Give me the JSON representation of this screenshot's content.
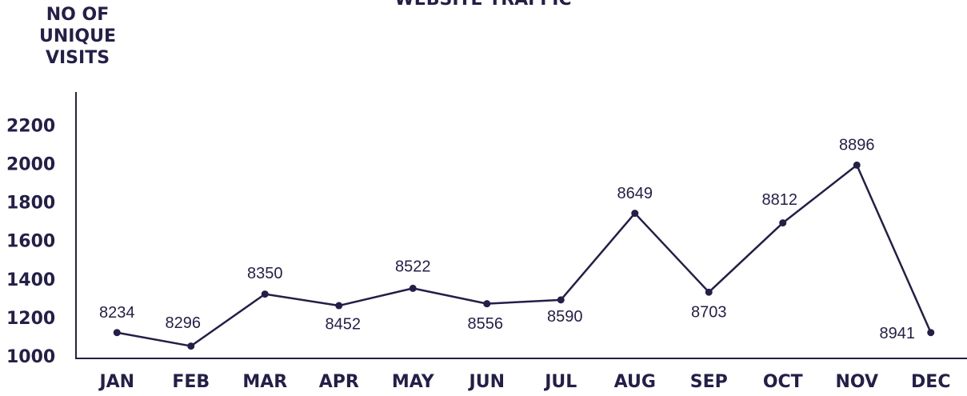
{
  "chart_data": {
    "type": "line",
    "title": "WEBSITE TRAFFIC",
    "ylabel": [
      "NO OF",
      "UNIQUE",
      "VISITS"
    ],
    "categories": [
      "JAN",
      "FEB",
      "MAR",
      "APR",
      "MAY",
      "JUN",
      "JUL",
      "AUG",
      "SEP",
      "OCT",
      "NOV",
      "DEC"
    ],
    "series": [
      {
        "color": "#231f48",
        "values": [
          1130,
          1060,
          1330,
          1270,
          1360,
          1280,
          1300,
          1750,
          1340,
          1700,
          2000,
          1130
        ]
      }
    ],
    "annotations": [
      "8234",
      "8296",
      "8350",
      "8452",
      "8522",
      "8556",
      "8590",
      "8649",
      "8703",
      "8812",
      "8896",
      "8941"
    ],
    "ylim": [
      1000,
      2380
    ],
    "yticks": [
      1000,
      1200,
      1400,
      1600,
      1800,
      2000,
      2200
    ],
    "grid": false
  }
}
